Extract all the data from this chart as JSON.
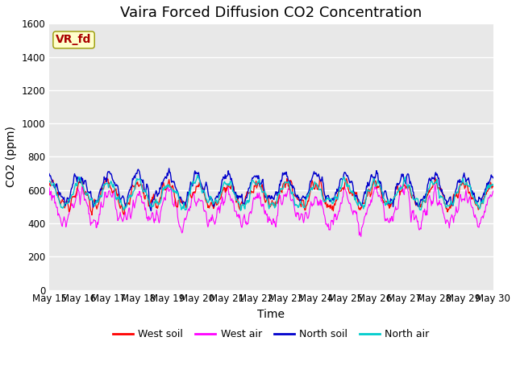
{
  "title": "Vaira Forced Diffusion CO2 Concentration",
  "xlabel": "Time",
  "ylabel": "CO2 (ppm)",
  "ylim": [
    0,
    1600
  ],
  "yticks": [
    0,
    200,
    400,
    600,
    800,
    1000,
    1200,
    1400,
    1600
  ],
  "x_tick_days": [
    15,
    16,
    17,
    18,
    19,
    20,
    21,
    22,
    23,
    24,
    25,
    26,
    27,
    28,
    29,
    30
  ],
  "colors": {
    "west_soil": "#ff0000",
    "west_air": "#ff00ff",
    "north_soil": "#0000cc",
    "north_air": "#00cccc"
  },
  "legend_labels": [
    "West soil",
    "West air",
    "North soil",
    "North air"
  ],
  "annotation_text": "VR_fd",
  "annotation_color": "#aa0000",
  "annotation_bg": "#ffffcc",
  "bg_color": "#e8e8e8",
  "grid_color": "#ffffff",
  "title_fontsize": 13,
  "axis_fontsize": 10,
  "tick_fontsize": 8.5
}
